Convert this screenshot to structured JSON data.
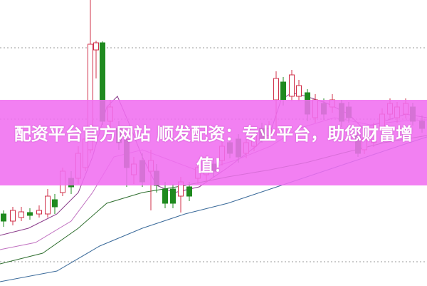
{
  "article": {
    "title": "配资平台官方网站 顺发配资：专业平台，助您财富增值！"
  },
  "colors": {
    "banner": "#f06ef0",
    "up_candle": "#d0304a",
    "down_candle": "#1f8a1f",
    "title_text": "#ffffff"
  }
}
